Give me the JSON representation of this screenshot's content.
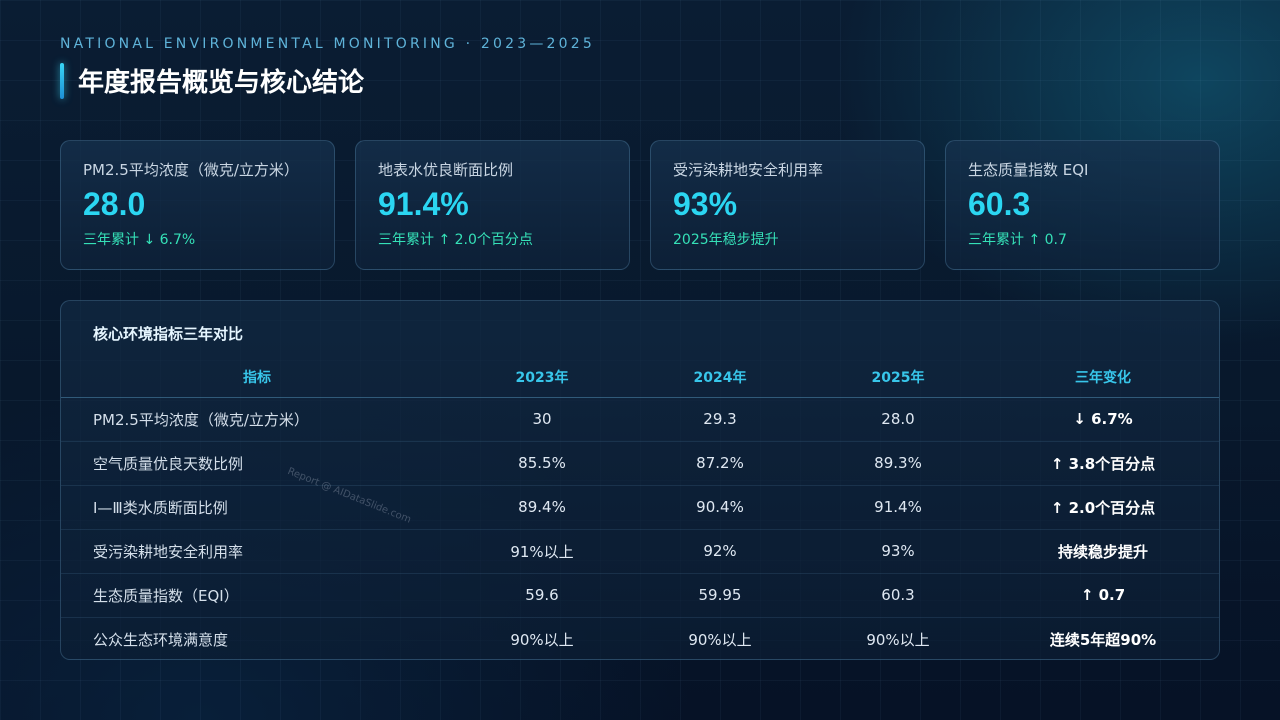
{
  "header": {
    "subtitle": "NATIONAL ENVIRONMENTAL MONITORING · 2023—2025",
    "title": "年度报告概览与核心结论"
  },
  "kpis": [
    {
      "label": "PM2.5平均浓度（微克/立方米）",
      "value": "28.0",
      "note": "三年累计 ↓ 6.7%"
    },
    {
      "label": "地表水优良断面比例",
      "value": "91.4%",
      "note": "三年累计 ↑ 2.0个百分点"
    },
    {
      "label": "受污染耕地安全利用率",
      "value": "93%",
      "note": "2025年稳步提升"
    },
    {
      "label": "生态质量指数 EQI",
      "value": "60.3",
      "note": "三年累计 ↑ 0.7"
    }
  ],
  "table": {
    "title": "核心环境指标三年对比",
    "headers": [
      "指标",
      "2023年",
      "2024年",
      "2025年",
      "三年变化"
    ],
    "rows": [
      [
        "PM2.5平均浓度（微克/立方米）",
        "30",
        "29.3",
        "28.0",
        "↓ 6.7%"
      ],
      [
        "空气质量优良天数比例",
        "85.5%",
        "87.2%",
        "89.3%",
        "↑ 3.8个百分点"
      ],
      [
        "Ⅰ—Ⅲ类水质断面比例",
        "89.4%",
        "90.4%",
        "91.4%",
        "↑ 2.0个百分点"
      ],
      [
        "受污染耕地安全利用率",
        "91%以上",
        "92%",
        "93%",
        "持续稳步提升"
      ],
      [
        "生态质量指数（EQI）",
        "59.6",
        "59.95",
        "60.3",
        "↑ 0.7"
      ],
      [
        "公众生态环境满意度",
        "90%以上",
        "90%以上",
        "90%以上",
        "连续5年超90%"
      ]
    ]
  },
  "watermark": "Report @ AIDataSlide.com",
  "colors": {
    "accent": "#2bd6f2",
    "positive": "#35e0b7",
    "header": "#38c6ea"
  }
}
